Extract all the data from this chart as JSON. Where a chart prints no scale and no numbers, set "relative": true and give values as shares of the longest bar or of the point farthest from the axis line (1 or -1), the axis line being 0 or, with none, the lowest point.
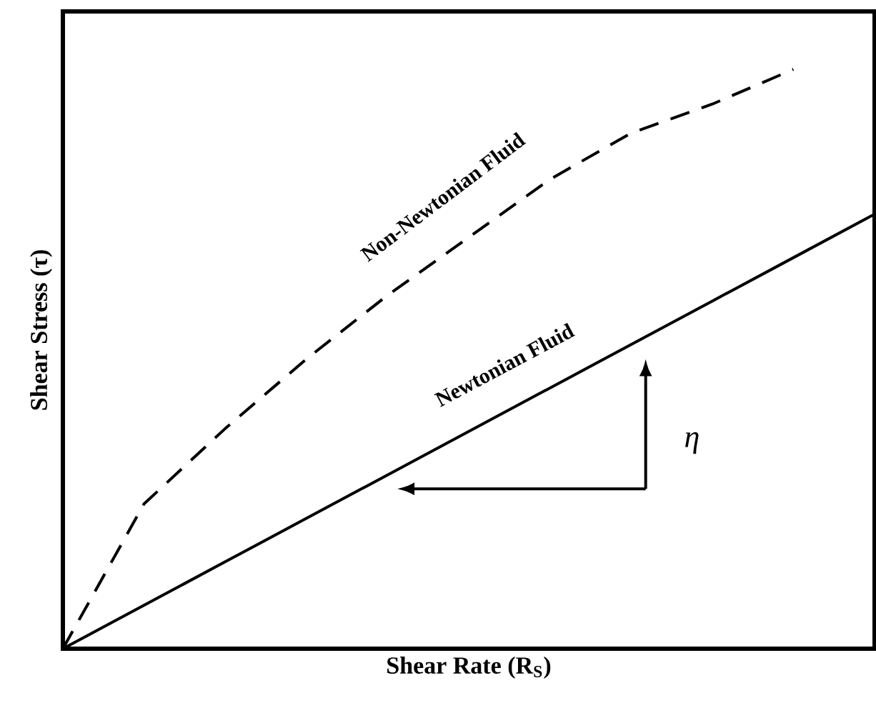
{
  "chart_data": {
    "type": "line",
    "relative": true,
    "xlabel": "Shear Rate (R$_{S}$)",
    "ylabel": "Shear Stress (τ)",
    "categories": [
      null,
      null,
      null,
      null,
      null,
      null,
      null,
      null,
      null,
      null,
      null
    ],
    "series": [
      {
        "name": "Non-Newtonian Fluid",
        "color": "#000000",
        "line_style": "dashed",
        "values": [
          0,
          0.25,
          0.38,
          0.5,
          0.61,
          0.71,
          0.81,
          0.89,
          0.94,
          1.0,
          null
        ]
      },
      {
        "name": "Newtonian Fluid",
        "color": "#000000",
        "line_style": "solid",
        "values": [
          0,
          0.075,
          0.15,
          0.225,
          0.3,
          0.375,
          0.45,
          0.525,
          0.6,
          0.675,
          0.75
        ]
      }
    ],
    "annotations": [
      "η"
    ],
    "marker": "none"
  }
}
